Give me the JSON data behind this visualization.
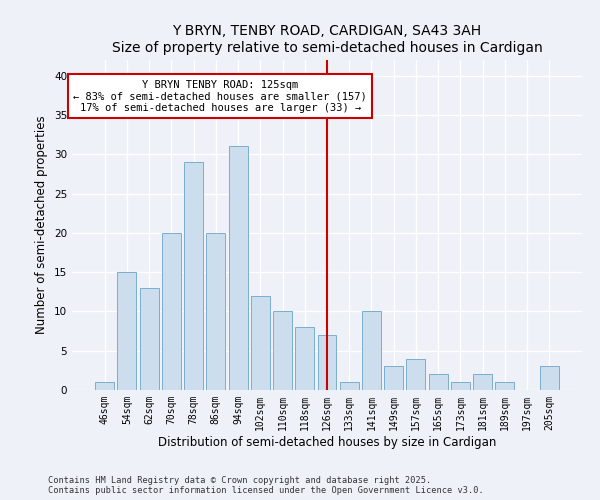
{
  "title1": "Y BRYN, TENBY ROAD, CARDIGAN, SA43 3AH",
  "title2": "Size of property relative to semi-detached houses in Cardigan",
  "xlabel": "Distribution of semi-detached houses by size in Cardigan",
  "ylabel": "Number of semi-detached properties",
  "categories": [
    "46sqm",
    "54sqm",
    "62sqm",
    "70sqm",
    "78sqm",
    "86sqm",
    "94sqm",
    "102sqm",
    "110sqm",
    "118sqm",
    "126sqm",
    "133sqm",
    "141sqm",
    "149sqm",
    "157sqm",
    "165sqm",
    "173sqm",
    "181sqm",
    "189sqm",
    "197sqm",
    "205sqm"
  ],
  "values": [
    1,
    15,
    13,
    20,
    29,
    20,
    31,
    12,
    10,
    8,
    7,
    1,
    10,
    3,
    4,
    2,
    1,
    2,
    1,
    0,
    3
  ],
  "bar_color": "#ccdded",
  "bar_edge_color": "#7aaece",
  "vline_x": 10,
  "vline_color": "#cc0000",
  "annotation_title": "Y BRYN TENBY ROAD: 125sqm",
  "annotation_line1": "← 83% of semi-detached houses are smaller (157)",
  "annotation_line2": "17% of semi-detached houses are larger (33) →",
  "ylim": [
    0,
    42
  ],
  "yticks": [
    0,
    5,
    10,
    15,
    20,
    25,
    30,
    35,
    40
  ],
  "footnote1": "Contains HM Land Registry data © Crown copyright and database right 2025.",
  "footnote2": "Contains public sector information licensed under the Open Government Licence v3.0.",
  "bg_color": "#eef2f8",
  "title_fontsize": 10,
  "tick_fontsize": 7,
  "label_fontsize": 8.5,
  "annot_fontsize": 7.5
}
